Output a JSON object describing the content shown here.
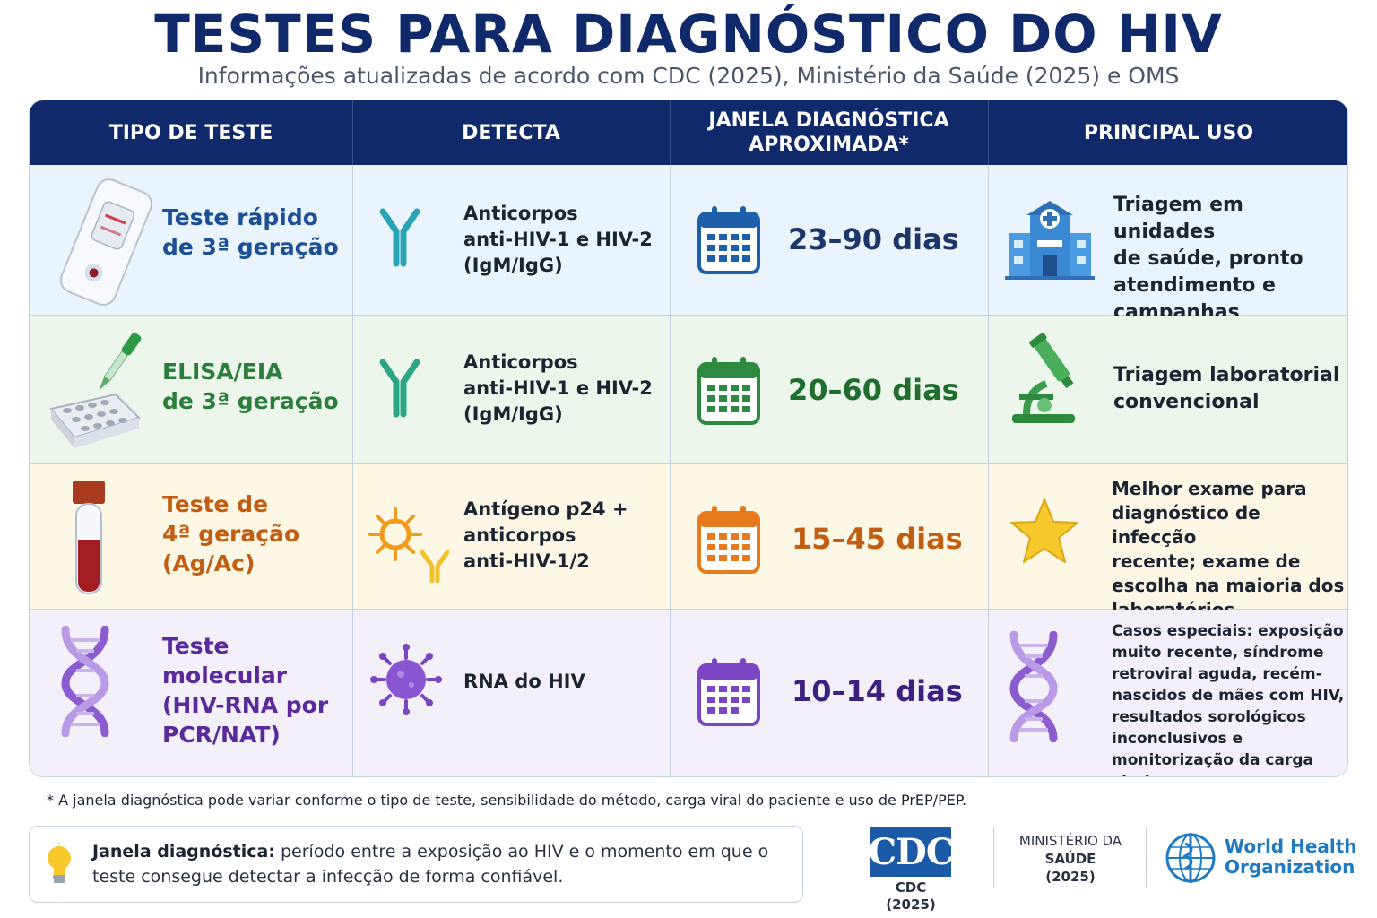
{
  "title": "TESTES PARA DIAGNÓSTICO DO HIV",
  "subtitle": "Informações atualizadas de acordo com CDC (2025), Ministério da Saúde (2025) e OMS",
  "headers": {
    "col1": "TIPO DE TESTE",
    "col2": "DETECTA",
    "col3": "JANELA DIAGNÓSTICA\nAPROXIMADA*",
    "col4": "PRINCIPAL USO"
  },
  "rows": [
    {
      "test": "Teste rápido\nde 3ª geração",
      "detects": "Anticorpos\nanti-HIV-1 e HIV-2\n(IgM/IgG)",
      "window": "23–90 dias",
      "use": "Triagem em unidades\nde saúde, pronto\natendimento e\ncampanhas",
      "color": "#1d4f95"
    },
    {
      "test": "ELISA/EIA\nde 3ª geração",
      "detects": "Anticorpos\nanti-HIV-1 e HIV-2\n(IgM/IgG)",
      "window": "20–60 dias",
      "use": "Triagem laboratorial\nconvencional",
      "color": "#2a7d3a"
    },
    {
      "test": "Teste de\n4ª geração\n(Ag/Ac)",
      "detects": "Antígeno p24 +\nanticorpos\nanti-HIV-1/2",
      "window": "15–45 dias",
      "use": "Melhor exame para\ndiagnóstico de infecção\nrecente; exame de\nescolha na maioria dos\nlaboratórios",
      "color": "#c25e12"
    },
    {
      "test": "Teste\nmolecular\n(HIV-RNA por\nPCR/NAT)",
      "detects": "RNA do HIV",
      "window": "10–14 dias",
      "use": "Casos especiais: exposição\nmuito recente, síndrome\nretroviral aguda, recém-\nnascidos de mães com HIV,\nresultados sorológicos\ninconclusivos e\nmonitorização da carga viral",
      "color": "#5a2a9a"
    }
  ],
  "footnote": "* A janela diagnóstica pode variar conforme o tipo de teste, sensibilidade do método, carga viral do paciente e uso de PrEP/PEP.",
  "info": {
    "term": "Janela diagnóstica:",
    "definition": "período entre a exposição ao HIV e o momento em que o teste consegue detectar a infecção de forma confiável."
  },
  "logos": {
    "cdc_mark": "CDC",
    "cdc_caption": "CDC\n(2025)",
    "ms_line1": "MINISTÉRIO DA",
    "ms_line2": "SAÚDE",
    "ms_line3": "(2025)",
    "who": "World Health\nOrganization"
  },
  "icons": {
    "row1_test": "rapid-test-cassette-icon",
    "row2_test": "pipette-microplate-icon",
    "row3_test": "blood-tube-icon",
    "row4_test": "dna-helix-icon",
    "antibody": "antibody-icon",
    "antigen": "virus-antigen-icon",
    "calendar": "calendar-icon",
    "use1": "hospital-icon",
    "use2": "microscope-icon",
    "use3": "star-icon",
    "use4": "dna-helix-icon",
    "info": "lightbulb-icon",
    "who": "who-globe-icon"
  }
}
